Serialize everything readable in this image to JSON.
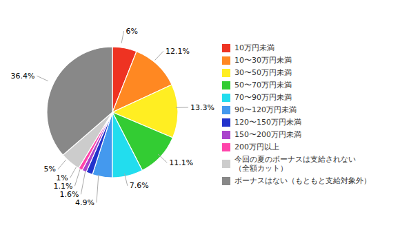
{
  "chart_data": {
    "type": "pie",
    "categories": [
      "10万円未満",
      "10〜30万円未満",
      "30〜50万円未満",
      "50〜70万円未満",
      "70〜90万円未満",
      "90〜120万円未満",
      "120〜150万円未満",
      "150〜200万円未満",
      "200万円以上",
      "今回の夏のボーナスは支給されない\n（全額カット）",
      "ボーナスはない（もともと支給対象外）"
    ],
    "values": [
      6.0,
      12.1,
      13.3,
      11.1,
      7.6,
      4.9,
      1.6,
      1.1,
      1.0,
      5.0,
      36.4
    ],
    "value_labels": [
      "6%",
      "12.1%",
      "13.3%",
      "11.1%",
      "7.6%",
      "4.9%",
      "1.6%",
      "1.1%",
      "1%",
      "5%",
      "36.4%"
    ],
    "colors": [
      "#ee3322",
      "#ff8822",
      "#ffee22",
      "#33cc33",
      "#22ddee",
      "#4499ee",
      "#2233cc",
      "#aa44cc",
      "#ff44aa",
      "#cccccc",
      "#888888"
    ],
    "legend": "right"
  }
}
